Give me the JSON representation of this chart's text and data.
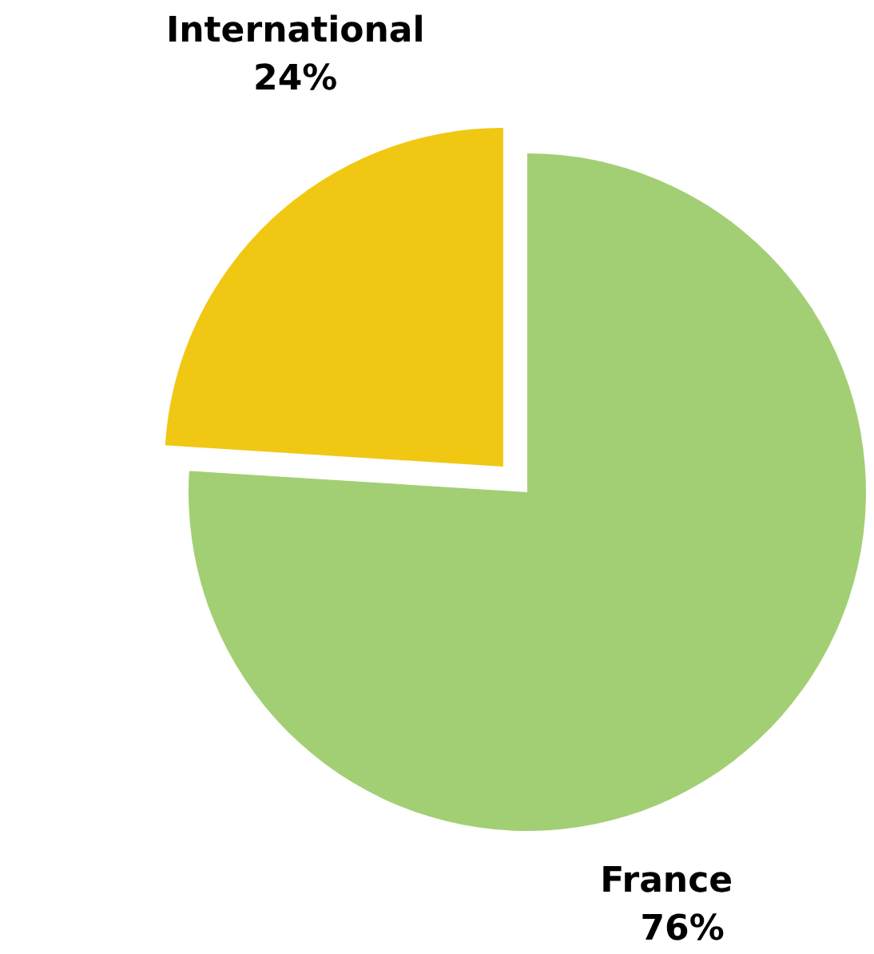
{
  "chart_data": {
    "type": "pie",
    "categories": [
      "France",
      "International"
    ],
    "values": [
      76,
      24
    ],
    "colors": [
      "#a3cf74",
      "#f0c814"
    ],
    "value_labels": [
      "76%",
      "24%"
    ]
  }
}
